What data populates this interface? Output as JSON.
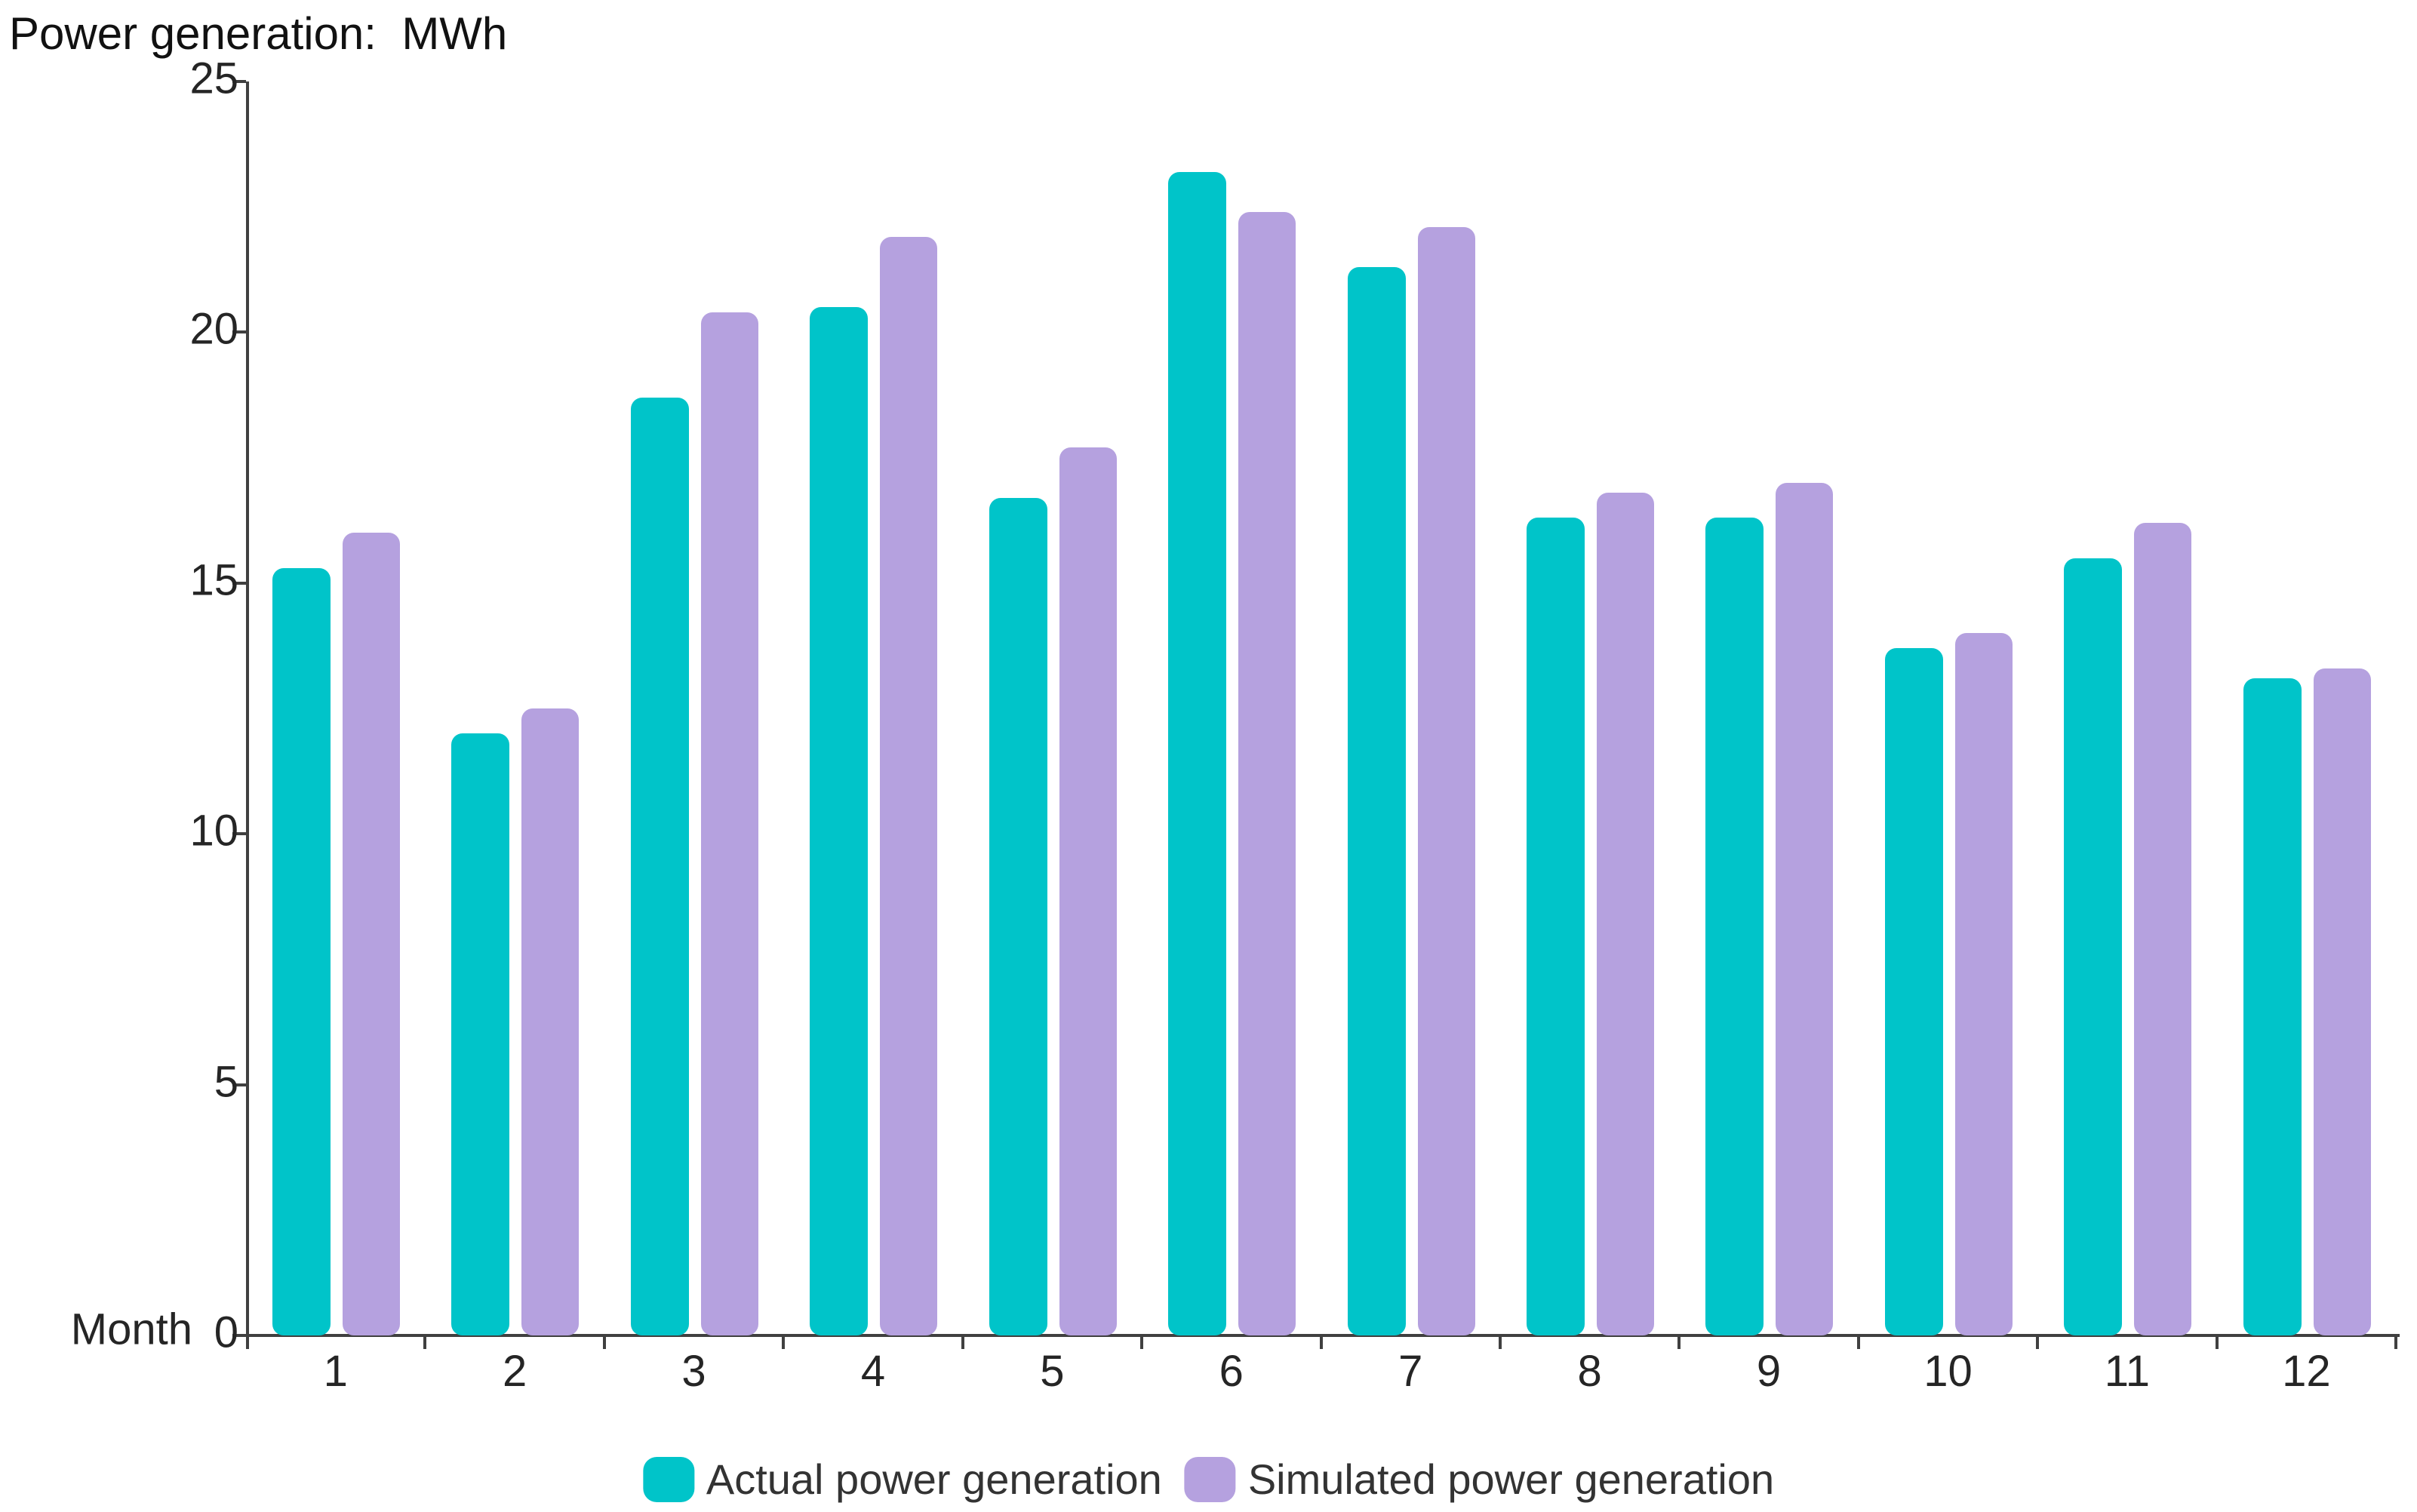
{
  "chart_data": {
    "type": "bar",
    "title": "Power generation:  MWh",
    "xlabel": "Month",
    "ylabel": "",
    "unit": "MWh",
    "categories": [
      "1",
      "2",
      "3",
      "4",
      "5",
      "6",
      "7",
      "8",
      "9",
      "10",
      "11",
      "12"
    ],
    "series": [
      {
        "name": "Actual power generation",
        "color": "#00C4C9",
        "values": [
          15.3,
          12.0,
          18.7,
          20.5,
          16.7,
          23.2,
          21.3,
          16.3,
          16.3,
          13.7,
          15.5,
          13.1
        ]
      },
      {
        "name": "Simulated power generation",
        "color": "#B5A1DF",
        "values": [
          16.0,
          12.5,
          20.4,
          21.9,
          17.7,
          22.4,
          22.1,
          16.8,
          17.0,
          14.0,
          16.2,
          13.3
        ]
      }
    ],
    "ylim": [
      0,
      25
    ],
    "ytick_step": 5,
    "ytick_labels": [
      "0",
      "5",
      "10",
      "15",
      "20",
      "25"
    ],
    "legend_position": "bottom",
    "grid": false
  },
  "colors": {
    "axis": "#404040",
    "text": "#252525",
    "legend_text": "#333333",
    "background": "#ffffff"
  }
}
